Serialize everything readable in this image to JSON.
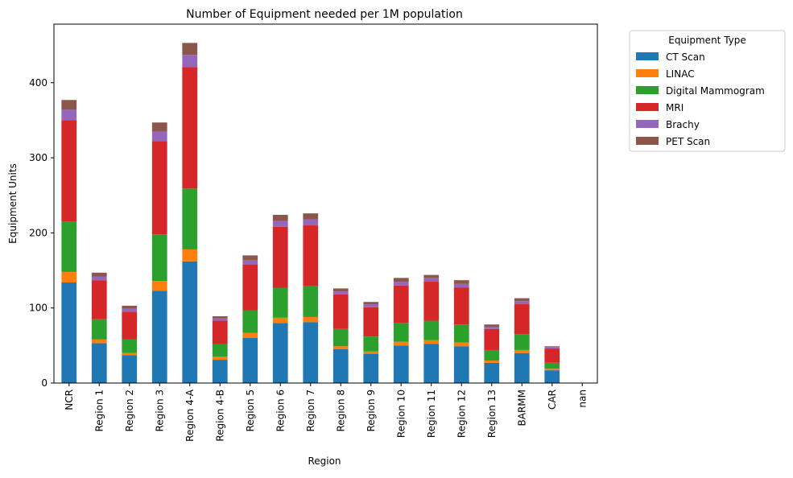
{
  "chart_data": {
    "type": "bar",
    "stacked": true,
    "title": "Number of Equipment needed per 1M population",
    "xlabel": "Region",
    "ylabel": "Equipment Units",
    "ylim": [
      0,
      478
    ],
    "yticks": [
      0,
      100,
      200,
      300,
      400
    ],
    "grid": false,
    "legend_title": "Equipment Type",
    "legend_position": "outside-top-right",
    "categories": [
      "NCR",
      "Region 1",
      "Region 2",
      "Region 3",
      "Region 4-A",
      "Region 4-B",
      "Region 5",
      "Region 6",
      "Region 7",
      "Region 8",
      "Region 9",
      "Region 10",
      "Region 11",
      "Region 12",
      "Region 13",
      "BARMM",
      "CAR",
      "nan"
    ],
    "series": [
      {
        "name": "CT Scan",
        "color": "#1f77b4",
        "values": [
          134,
          53,
          37,
          123,
          162,
          31,
          60,
          80,
          81,
          45,
          39,
          50,
          52,
          49,
          27,
          40,
          17,
          0
        ]
      },
      {
        "name": "LINAC",
        "color": "#ff7f0e",
        "values": [
          14,
          5,
          3,
          13,
          16,
          4,
          7,
          7,
          7,
          4,
          3,
          5,
          5,
          5,
          3,
          4,
          2,
          0
        ]
      },
      {
        "name": "Digital Mammogram",
        "color": "#2ca02c",
        "values": [
          67,
          27,
          18,
          62,
          81,
          17,
          30,
          40,
          41,
          23,
          20,
          25,
          26,
          24,
          14,
          21,
          8,
          0
        ]
      },
      {
        "name": "MRI",
        "color": "#d62728",
        "values": [
          135,
          52,
          37,
          124,
          162,
          31,
          61,
          81,
          81,
          46,
          39,
          50,
          52,
          49,
          28,
          40,
          19,
          0
        ]
      },
      {
        "name": "Brachy",
        "color": "#9467bd",
        "values": [
          14,
          5,
          4,
          13,
          16,
          3,
          6,
          8,
          8,
          4,
          4,
          5,
          5,
          5,
          3,
          4,
          2,
          0
        ]
      },
      {
        "name": "PET Scan",
        "color": "#8c564b",
        "values": [
          13,
          5,
          4,
          12,
          16,
          3,
          6,
          8,
          8,
          4,
          3,
          5,
          4,
          5,
          3,
          4,
          1,
          0
        ]
      }
    ]
  }
}
